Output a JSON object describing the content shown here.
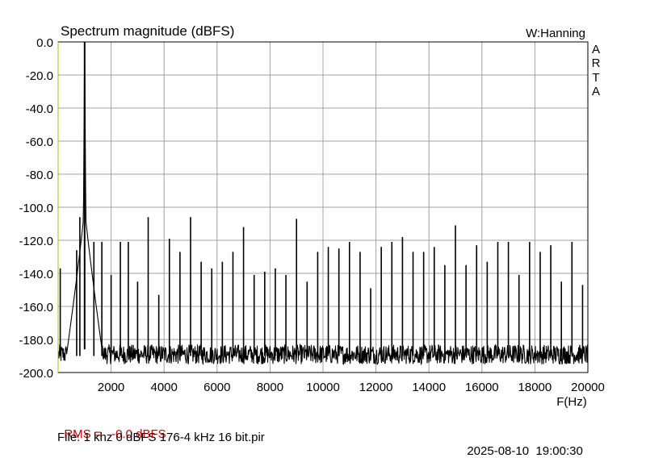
{
  "chart_data": {
    "type": "line",
    "title": "Spectrum magnitude (dBFS)",
    "window_label": "W:Hanning",
    "brand": [
      "A",
      "R",
      "T",
      "A"
    ],
    "xlabel": "F(Hz)",
    "ylabel": "",
    "xlim": [
      0,
      20000
    ],
    "ylim": [
      -200,
      0
    ],
    "x_ticks": [
      2000,
      4000,
      6000,
      8000,
      10000,
      12000,
      14000,
      16000,
      18000,
      20000
    ],
    "x_tick_labels": [
      "2000",
      "4000",
      "6000",
      "8000",
      "10000",
      "12000",
      "14000",
      "16000",
      "18000",
      "20000"
    ],
    "y_ticks": [
      0,
      -20,
      -40,
      -60,
      -80,
      -100,
      -120,
      -140,
      -160,
      -180,
      -200
    ],
    "y_tick_labels": [
      "0.0",
      "-20.0",
      "-40.0",
      "-60.0",
      "-80.0",
      "-100.0",
      "-120.0",
      "-140.0",
      "-160.0",
      "-180.0",
      "-200.0"
    ],
    "grid": true,
    "noise_floor_db": [
      -195,
      -185
    ],
    "series": [
      {
        "color": "#000000",
        "fundamental": {
          "freq": 1000,
          "db": 0
        },
        "peaks": [
          [
            80,
            -137
          ],
          [
            700,
            -126
          ],
          [
            820,
            -106
          ],
          [
            1350,
            -121
          ],
          [
            1650,
            -121
          ],
          [
            2000,
            -141
          ],
          [
            2350,
            -121
          ],
          [
            2650,
            -121
          ],
          [
            3000,
            -145
          ],
          [
            3400,
            -106
          ],
          [
            3800,
            -153
          ],
          [
            4200,
            -119
          ],
          [
            4600,
            -127
          ],
          [
            5000,
            -106
          ],
          [
            5400,
            -133
          ],
          [
            5800,
            -137
          ],
          [
            6200,
            -133
          ],
          [
            6600,
            -127
          ],
          [
            7000,
            -112
          ],
          [
            7400,
            -141
          ],
          [
            7800,
            -139
          ],
          [
            8200,
            -137
          ],
          [
            8600,
            -141
          ],
          [
            9000,
            -107
          ],
          [
            9400,
            -145
          ],
          [
            9800,
            -127
          ],
          [
            10200,
            -124
          ],
          [
            10600,
            -125
          ],
          [
            11000,
            -121
          ],
          [
            11400,
            -127
          ],
          [
            11800,
            -149
          ],
          [
            12200,
            -124
          ],
          [
            12600,
            -121
          ],
          [
            13000,
            -118
          ],
          [
            13400,
            -127
          ],
          [
            13800,
            -127
          ],
          [
            14200,
            -124
          ],
          [
            14600,
            -135
          ],
          [
            15000,
            -111
          ],
          [
            15400,
            -135
          ],
          [
            15800,
            -123
          ],
          [
            16200,
            -133
          ],
          [
            16600,
            -121
          ],
          [
            17000,
            -121
          ],
          [
            17400,
            -141
          ],
          [
            17800,
            -121
          ],
          [
            18200,
            -127
          ],
          [
            18600,
            -123
          ],
          [
            19000,
            -145
          ],
          [
            19400,
            -121
          ],
          [
            19800,
            -147
          ]
        ]
      }
    ]
  },
  "footer": {
    "rms_label": "RMS =",
    "rms_value": "-0.0 dBFS",
    "file_label": "File: 1 khz 0 dBFS 176-4 kHz 16 bit.pir",
    "date": "2025-08-10",
    "time": "19:00:30",
    "rms_color": "#cc0000"
  }
}
